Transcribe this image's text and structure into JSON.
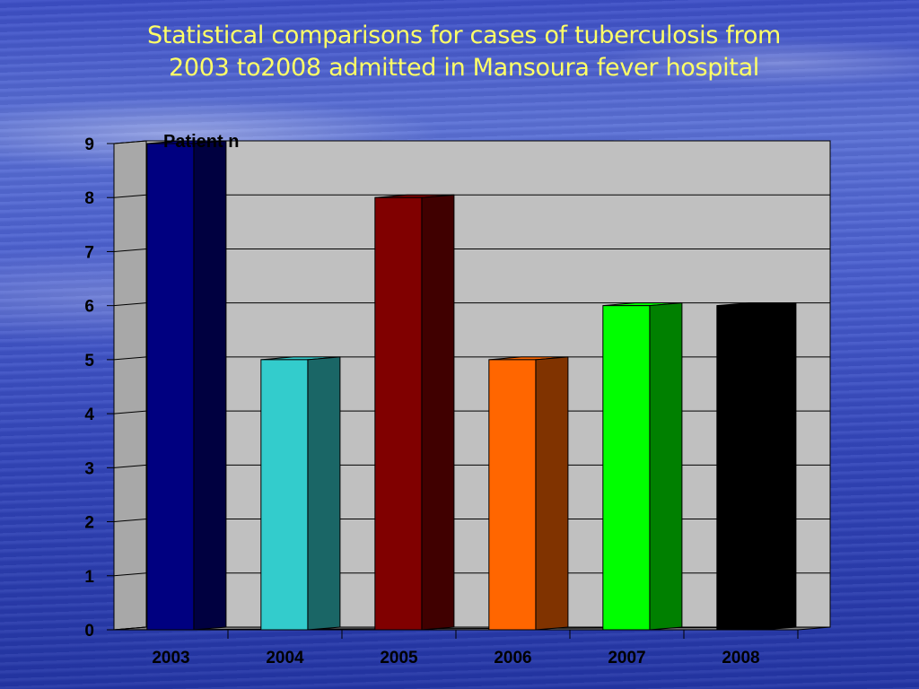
{
  "slide": {
    "title": "Statistical comparisons for cases of tuberculosis from\n2003 to2008 admitted  in Mansoura fever hospital"
  },
  "chart_data": {
    "type": "bar",
    "title": "Statistical comparisons for cases of tuberculosis from 2003 to2008 admitted  in Mansoura fever hospital",
    "ylabel": "Patient n",
    "xlabel": "",
    "categories": [
      "2003",
      "2004",
      "2005",
      "2006",
      "2007",
      "2008"
    ],
    "values": [
      9,
      5,
      8,
      5,
      6,
      6
    ],
    "ylim": [
      0,
      9
    ],
    "yticks": [
      0,
      1,
      2,
      3,
      4,
      5,
      6,
      7,
      8,
      9
    ],
    "grid": true,
    "three_d": true,
    "colors": [
      {
        "front": "#000080",
        "side": "#000040"
      },
      {
        "front": "#33cccc",
        "side": "#1a6666"
      },
      {
        "front": "#800000",
        "side": "#400000"
      },
      {
        "front": "#ff6600",
        "side": "#803300"
      },
      {
        "front": "#00ff00",
        "side": "#008000"
      },
      {
        "front": "#000000",
        "side": "#000000"
      }
    ],
    "plot_background": "#c0c0c0"
  }
}
